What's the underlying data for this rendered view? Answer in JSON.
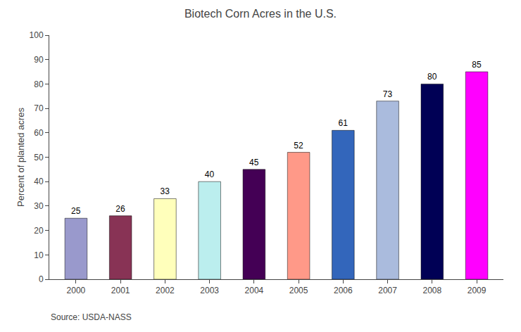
{
  "chart_data": {
    "type": "bar",
    "title": "Biotech Corn Acres in the U.S.",
    "ylabel": "Percent of planted acres",
    "annotations": [
      "Source: USDA-NASS"
    ],
    "categories": [
      "2000",
      "2001",
      "2002",
      "2003",
      "2004",
      "2005",
      "2006",
      "2007",
      "2008",
      "2009"
    ],
    "values": [
      25,
      26,
      33,
      40,
      45,
      52,
      61,
      73,
      80,
      85
    ],
    "colors": [
      "#9999CC",
      "#883355",
      "#FFFFBB",
      "#BBEEEE",
      "#440055",
      "#FF9988",
      "#3366BB",
      "#AABBDD",
      "#000055",
      "#FF00FF"
    ],
    "ylim": [
      0,
      100
    ],
    "yticks": [
      0,
      10,
      20,
      30,
      40,
      50,
      60,
      70,
      80,
      90,
      100
    ],
    "grid": false,
    "data_labels": true
  }
}
